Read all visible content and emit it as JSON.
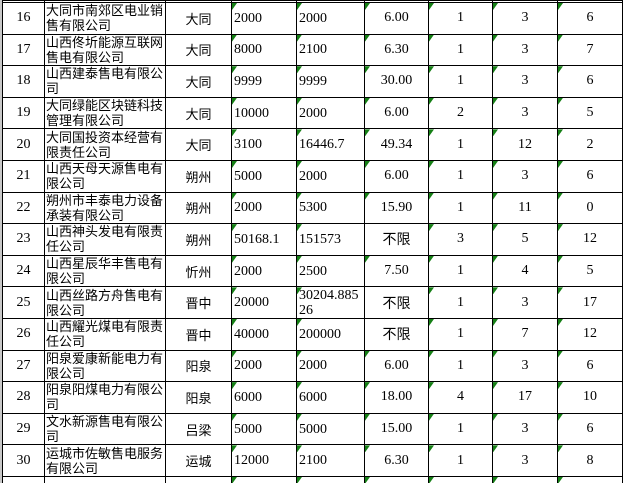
{
  "colors": {
    "grid_border": "#000000",
    "cell_background": "#ffffff",
    "text": "#000000",
    "error_triangle_green": "#168016",
    "left_edge_strip": "#c8c8c8"
  },
  "table": {
    "column_keys": [
      "no",
      "company",
      "city",
      "v1",
      "v2",
      "v3",
      "v4",
      "v5",
      "v6"
    ],
    "unlimited_label": "不限",
    "rows": [
      {
        "no": "16",
        "company": "大同市南郊区电业销售有限公司",
        "city": "大同",
        "v1": "2000",
        "v2": "2000",
        "v3": "6.00",
        "v4": "1",
        "v5": "3",
        "v6": "6"
      },
      {
        "no": "17",
        "company": "山西佟圻能源互联网售电有限公司",
        "city": "大同",
        "v1": "8000",
        "v2": "2100",
        "v3": "6.30",
        "v4": "1",
        "v5": "3",
        "v6": "7"
      },
      {
        "no": "18",
        "company": "山西建泰售电有限公司",
        "city": "大同",
        "v1": "9999",
        "v2": "9999",
        "v3": "30.00",
        "v4": "1",
        "v5": "3",
        "v6": "6"
      },
      {
        "no": "19",
        "company": "大同绿能区块链科技管理有限公司",
        "city": "大同",
        "v1": "10000",
        "v2": "2000",
        "v3": "6.00",
        "v4": "2",
        "v5": "3",
        "v6": "5"
      },
      {
        "no": "20",
        "company": "大同国投资本经营有限责任公司",
        "city": "大同",
        "v1": "3100",
        "v2": "16446.7",
        "v3": "49.34",
        "v4": "1",
        "v5": "12",
        "v6": "2"
      },
      {
        "no": "21",
        "company": "山西天母天源售电有限公司",
        "city": "朔州",
        "v1": "5000",
        "v2": "2000",
        "v3": "6.00",
        "v4": "1",
        "v5": "3",
        "v6": "6"
      },
      {
        "no": "22",
        "company": "朔州市丰泰电力设备承装有限公司",
        "city": "朔州",
        "v1": "2000",
        "v2": "5300",
        "v3": "15.90",
        "v4": "1",
        "v5": "11",
        "v6": "0"
      },
      {
        "no": "23",
        "company": "山西神头发电有限责任公司",
        "city": "朔州",
        "v1": "50168.1",
        "v2": "151573",
        "v3": "不限",
        "v4": "3",
        "v5": "5",
        "v6": "12"
      },
      {
        "no": "24",
        "company": "山西星辰华丰售电有限公司",
        "city": "忻州",
        "v1": "2000",
        "v2": "2500",
        "v3": "7.50",
        "v4": "1",
        "v5": "4",
        "v6": "5"
      },
      {
        "no": "25",
        "company": "山西丝路方舟售电有限公司",
        "city": "晋中",
        "v1": "20000",
        "v2": "30204.88526",
        "v3": "不限",
        "v4": "1",
        "v5": "3",
        "v6": "17"
      },
      {
        "no": "26",
        "company": "山西耀光煤电有限责任公司",
        "city": "晋中",
        "v1": "40000",
        "v2": "200000",
        "v3": "不限",
        "v4": "1",
        "v5": "7",
        "v6": "12"
      },
      {
        "no": "27",
        "company": "阳泉爱康新能电力有限公司",
        "city": "阳泉",
        "v1": "2000",
        "v2": "2000",
        "v3": "6.00",
        "v4": "1",
        "v5": "3",
        "v6": "6"
      },
      {
        "no": "28",
        "company": "阳泉阳煤电力有限公司",
        "city": "阳泉",
        "v1": "6000",
        "v2": "6000",
        "v3": "18.00",
        "v4": "4",
        "v5": "17",
        "v6": "10"
      },
      {
        "no": "29",
        "company": "文水新源售电有限公司",
        "city": "吕梁",
        "v1": "5000",
        "v2": "5000",
        "v3": "15.00",
        "v4": "1",
        "v5": "3",
        "v6": "6"
      },
      {
        "no": "30",
        "company": "运城市佐敏售电服务有限公司",
        "city": "运城",
        "v1": "12000",
        "v2": "2100",
        "v3": "6.30",
        "v4": "1",
        "v5": "3",
        "v6": "8"
      }
    ],
    "partial_next_row_visible": true
  }
}
